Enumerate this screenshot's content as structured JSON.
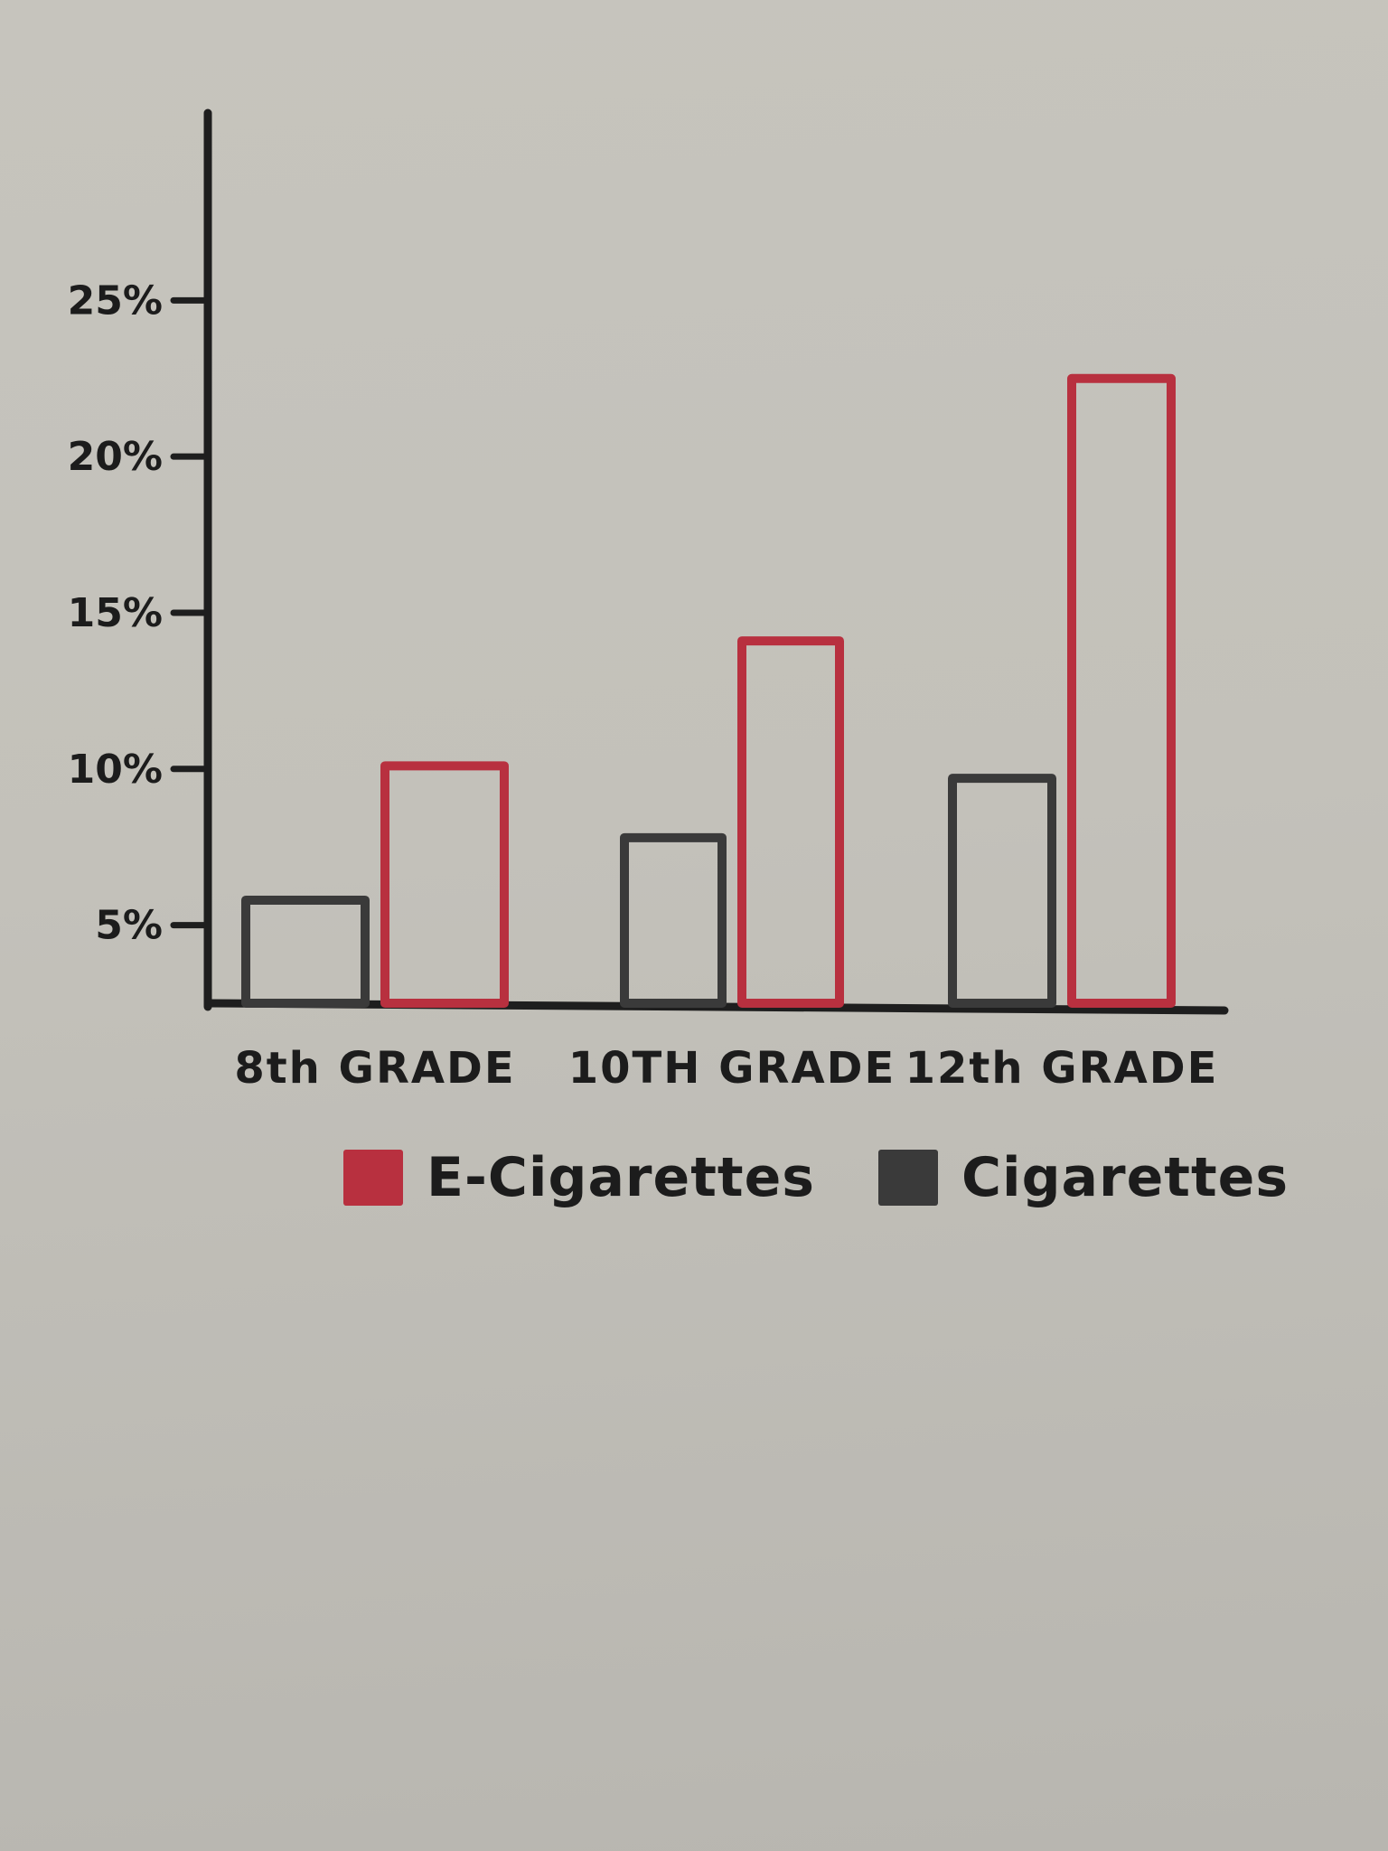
{
  "chart_data": {
    "type": "bar",
    "categories": [
      "8th GRADE",
      "10TH GRADE",
      "12th GRADE"
    ],
    "series": [
      {
        "name": "Cigarettes",
        "color": "#3a3a3a",
        "values": [
          5.8,
          7.8,
          9.7
        ]
      },
      {
        "name": "E-Cigarettes",
        "color": "#b8303f",
        "values": [
          10.1,
          14.1,
          22.5
        ]
      }
    ],
    "yticks": [
      {
        "value": 5,
        "label": "5%"
      },
      {
        "value": 10,
        "label": "10%"
      },
      {
        "value": 15,
        "label": "15%"
      },
      {
        "value": 20,
        "label": "20%"
      },
      {
        "value": 25,
        "label": "25%"
      }
    ],
    "ylim": [
      2.5,
      31
    ],
    "legend": [
      {
        "label": "E-Cigarettes",
        "color": "#b8303f"
      },
      {
        "label": "Cigarettes",
        "color": "#3a3a3a"
      }
    ],
    "legend_position": "bottom",
    "grid": false
  }
}
